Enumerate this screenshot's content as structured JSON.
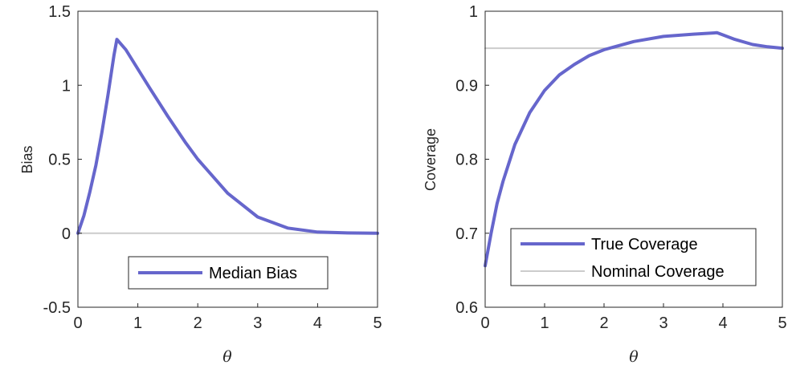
{
  "colors": {
    "series": "#6666cc",
    "reference": "#cccccc",
    "axis": "#262626"
  },
  "chart_data": [
    {
      "type": "line",
      "xlabel": "θ",
      "ylabel": "Bias",
      "xlim": [
        0,
        5
      ],
      "ylim": [
        -0.5,
        1.5
      ],
      "xticks": [
        "0",
        "1",
        "2",
        "3",
        "4",
        "5"
      ],
      "yticks": [
        "-0.5",
        "0",
        "0.5",
        "1",
        "1.5"
      ],
      "grid": false,
      "legend_position": "bottom-center",
      "series": [
        {
          "name": "Median Bias",
          "x": [
            0,
            0.1,
            0.2,
            0.3,
            0.4,
            0.5,
            0.6,
            0.65,
            0.8,
            1.0,
            1.2,
            1.5,
            1.8,
            2.0,
            2.5,
            3.0,
            3.5,
            4.0,
            4.5,
            5.0
          ],
          "y": [
            0,
            0.12,
            0.28,
            0.46,
            0.68,
            0.93,
            1.2,
            1.31,
            1.24,
            1.11,
            0.98,
            0.79,
            0.61,
            0.5,
            0.27,
            0.11,
            0.035,
            0.008,
            0.002,
            0.0
          ]
        }
      ],
      "reference": {
        "y": 0
      }
    },
    {
      "type": "line",
      "xlabel": "θ",
      "ylabel": "Coverage",
      "xlim": [
        0,
        5
      ],
      "ylim": [
        0.6,
        1
      ],
      "xticks": [
        "0",
        "1",
        "2",
        "3",
        "4",
        "5"
      ],
      "yticks": [
        "0.6",
        "0.7",
        "0.8",
        "0.9",
        "1"
      ],
      "grid": false,
      "legend_position": "bottom-right",
      "series": [
        {
          "name": "True Coverage",
          "x": [
            0,
            0.1,
            0.2,
            0.3,
            0.5,
            0.75,
            1.0,
            1.25,
            1.5,
            1.75,
            2.0,
            2.5,
            3.0,
            3.5,
            3.9,
            4.0,
            4.2,
            4.5,
            4.75,
            5.0
          ],
          "y": [
            0.656,
            0.7,
            0.74,
            0.77,
            0.82,
            0.863,
            0.893,
            0.914,
            0.928,
            0.94,
            0.948,
            0.959,
            0.966,
            0.969,
            0.971,
            0.968,
            0.962,
            0.955,
            0.952,
            0.95
          ]
        },
        {
          "name": "Nominal Coverage",
          "x": [
            0,
            5
          ],
          "y": [
            0.95,
            0.95
          ]
        }
      ]
    }
  ]
}
